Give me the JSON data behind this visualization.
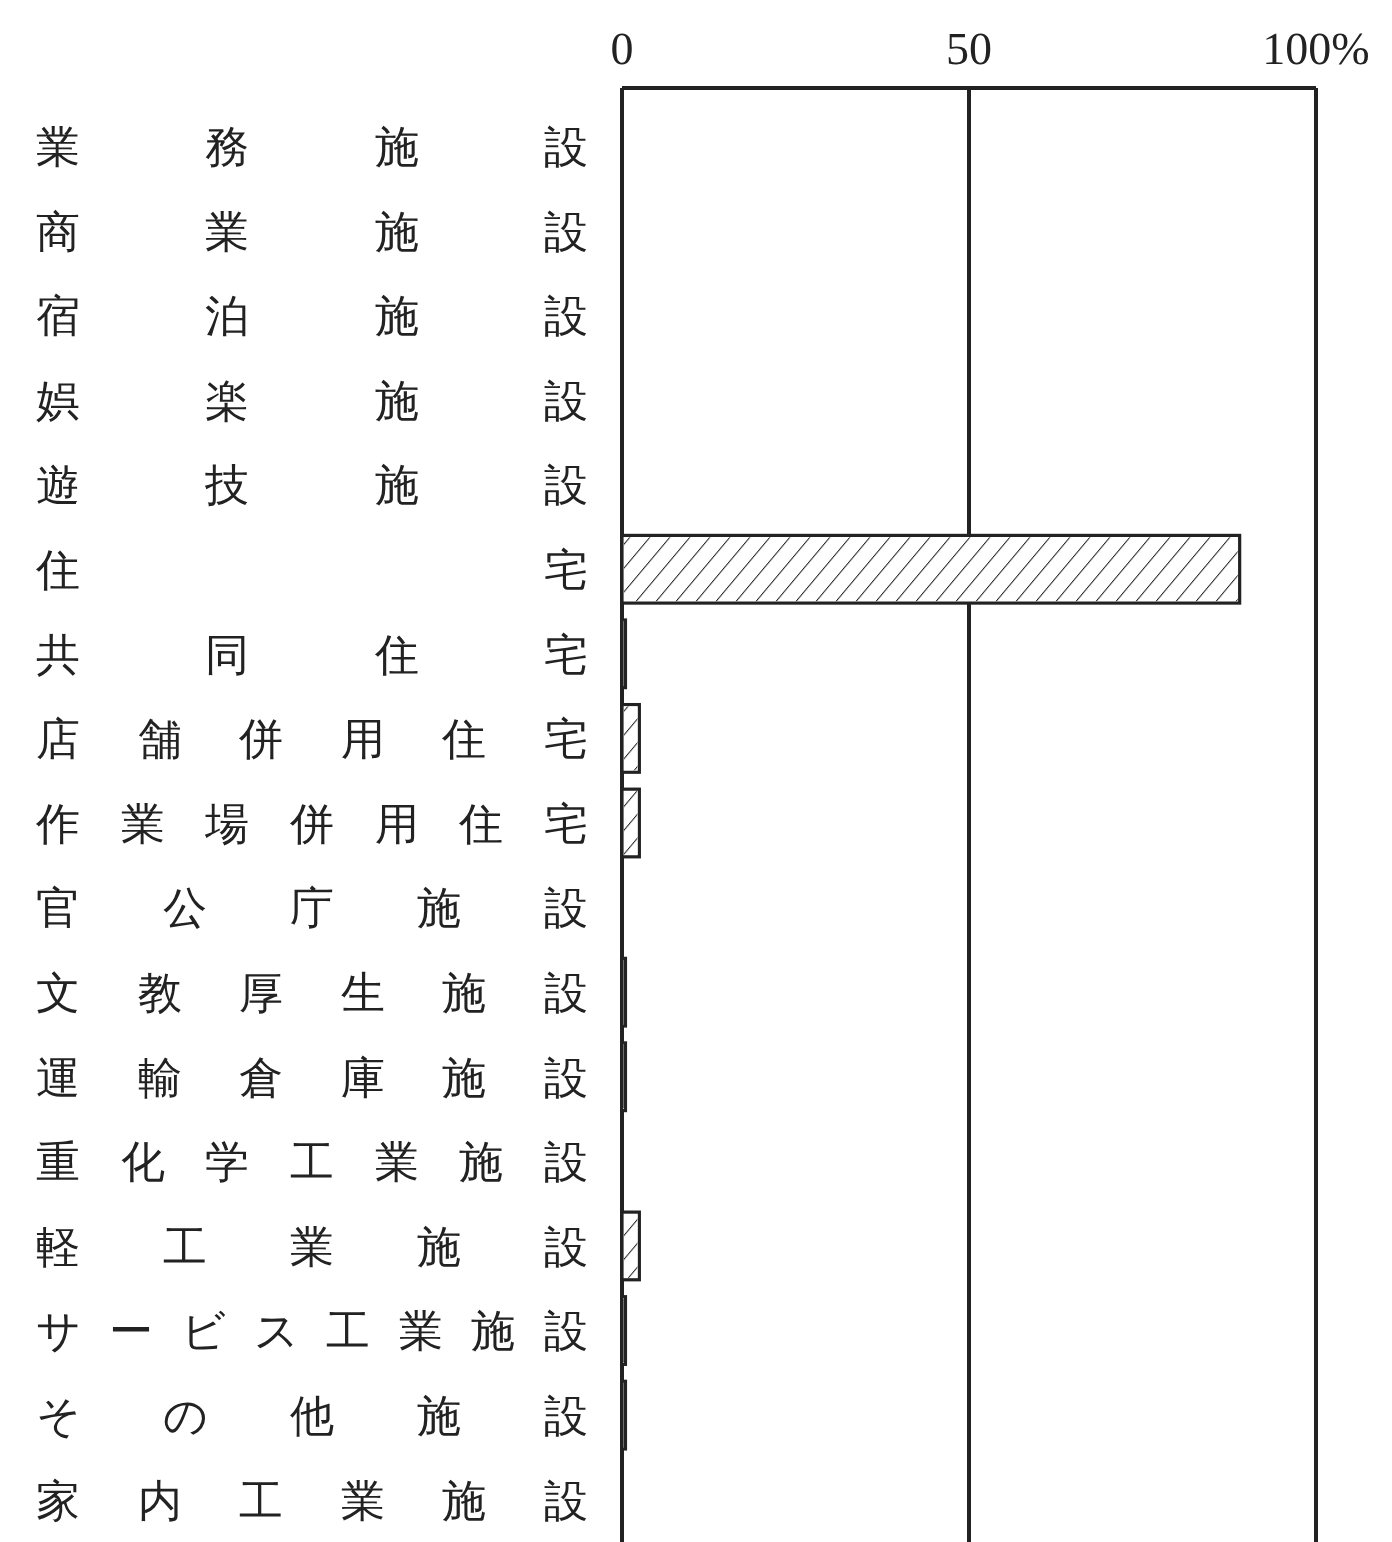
{
  "chart_data": {
    "type": "bar",
    "orientation": "horizontal",
    "categories": [
      "業務施設",
      "商業施設",
      "宿泊施設",
      "娯楽施設",
      "遊技施設",
      "住宅",
      "共同住宅",
      "店舗併用住宅",
      "作業場併用住宅",
      "官公庁施設",
      "文教厚生施設",
      "運輸倉庫施設",
      "重化学工業施設",
      "軽工業施設",
      "サービス工業施設",
      "その他施設",
      "家内工業施設"
    ],
    "values": [
      0,
      0,
      0,
      0,
      0,
      89,
      0.5,
      2.5,
      2.5,
      0,
      0.5,
      0.5,
      0,
      2.5,
      0.5,
      0.5,
      0
    ],
    "color": "#ffffff",
    "xlim": [
      0,
      100
    ],
    "xticks": [
      0,
      50,
      {
        "value": 100,
        "label": "100%"
      }
    ],
    "grid": "x"
  }
}
